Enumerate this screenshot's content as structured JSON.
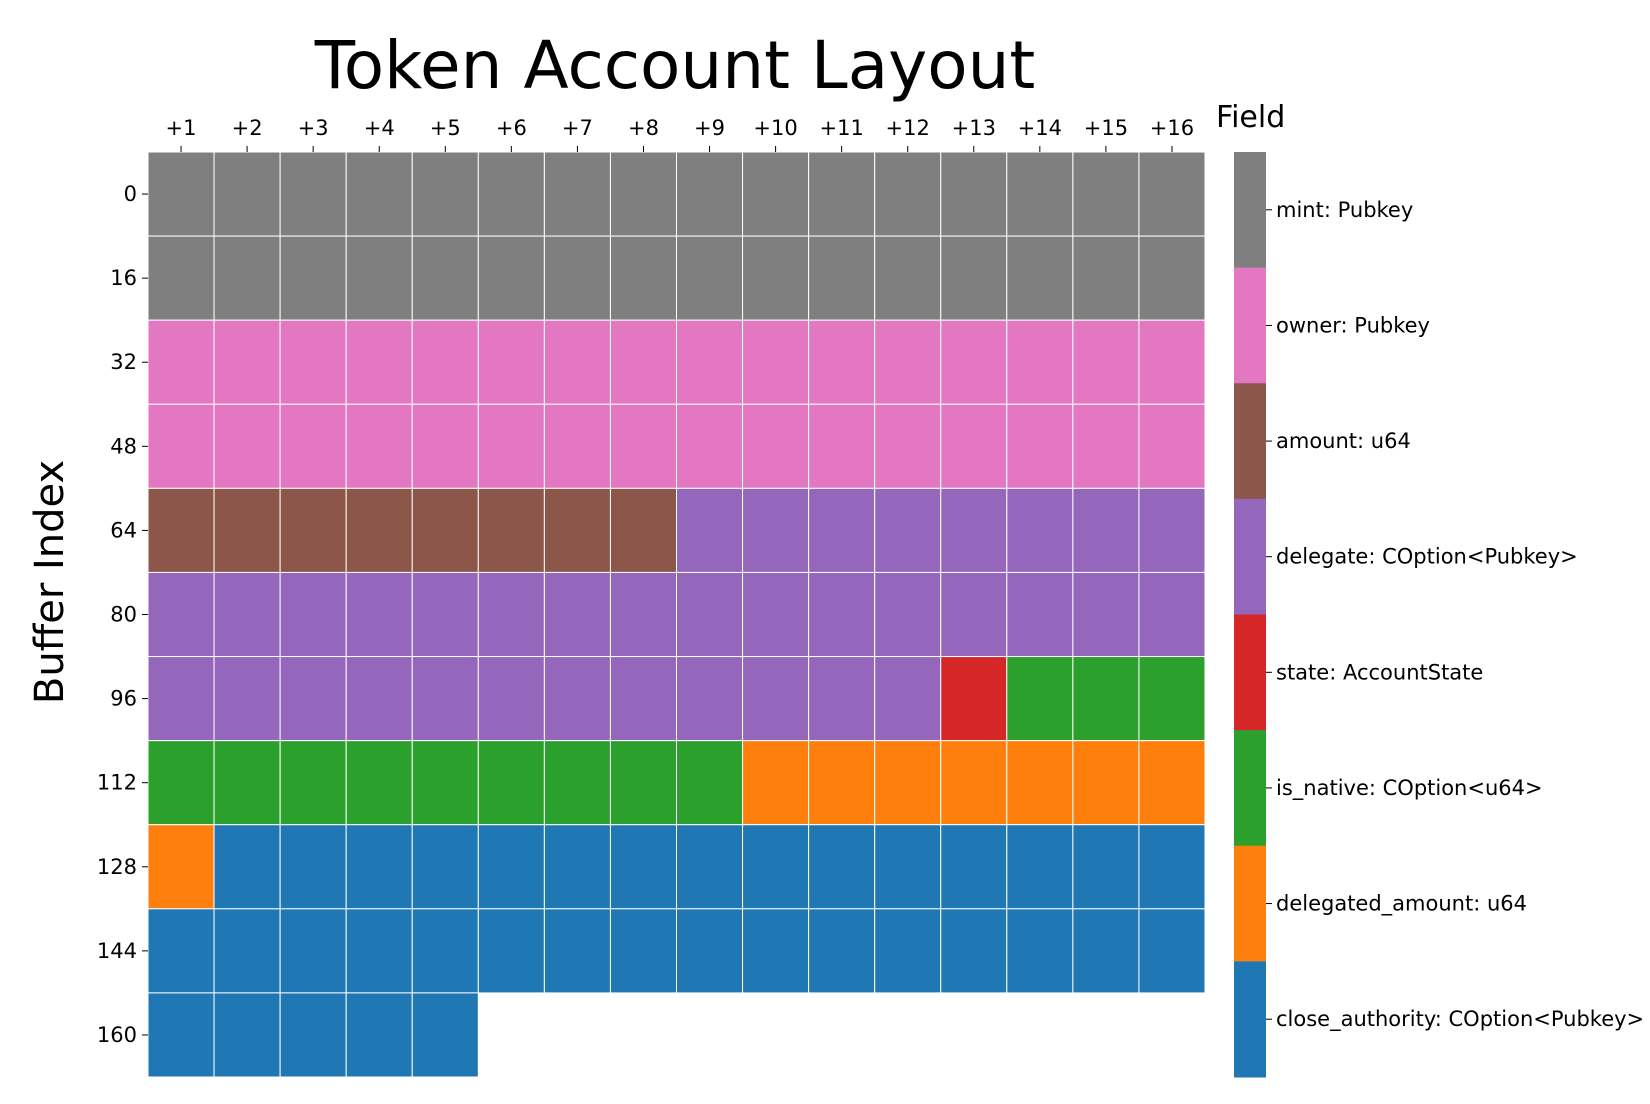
{
  "chart_data": {
    "type": "heatmap",
    "title": "Token Account Layout",
    "xlabel": "",
    "ylabel": "Buffer Index",
    "x_tick_labels": [
      "+1",
      "+2",
      "+3",
      "+4",
      "+5",
      "+6",
      "+7",
      "+8",
      "+9",
      "+10",
      "+11",
      "+12",
      "+13",
      "+14",
      "+15",
      "+16"
    ],
    "y_tick_labels": [
      "0",
      "16",
      "32",
      "48",
      "64",
      "80",
      "96",
      "112",
      "128",
      "144",
      "160"
    ],
    "bytes_per_row": 16,
    "total_bytes": 165,
    "legend": {
      "title": "Field",
      "placement": "right"
    },
    "fields": [
      {
        "name": "mint: Pubkey",
        "start": 0,
        "length": 32,
        "color": "#7f7f7f"
      },
      {
        "name": "owner: Pubkey",
        "start": 32,
        "length": 32,
        "color": "#e377c2"
      },
      {
        "name": "amount: u64",
        "start": 64,
        "length": 8,
        "color": "#8c564b"
      },
      {
        "name": "delegate: COption<Pubkey>",
        "start": 72,
        "length": 36,
        "color": "#9467bd"
      },
      {
        "name": "state: AccountState",
        "start": 108,
        "length": 1,
        "color": "#d62728"
      },
      {
        "name": "is_native: COption<u64>",
        "start": 109,
        "length": 12,
        "color": "#2ca02c"
      },
      {
        "name": "delegated_amount: u64",
        "start": 121,
        "length": 8,
        "color": "#ff7f0e"
      },
      {
        "name": "close_authority: COption<Pubkey>",
        "start": 129,
        "length": 36,
        "color": "#1f77b4"
      }
    ],
    "grid": false
  }
}
